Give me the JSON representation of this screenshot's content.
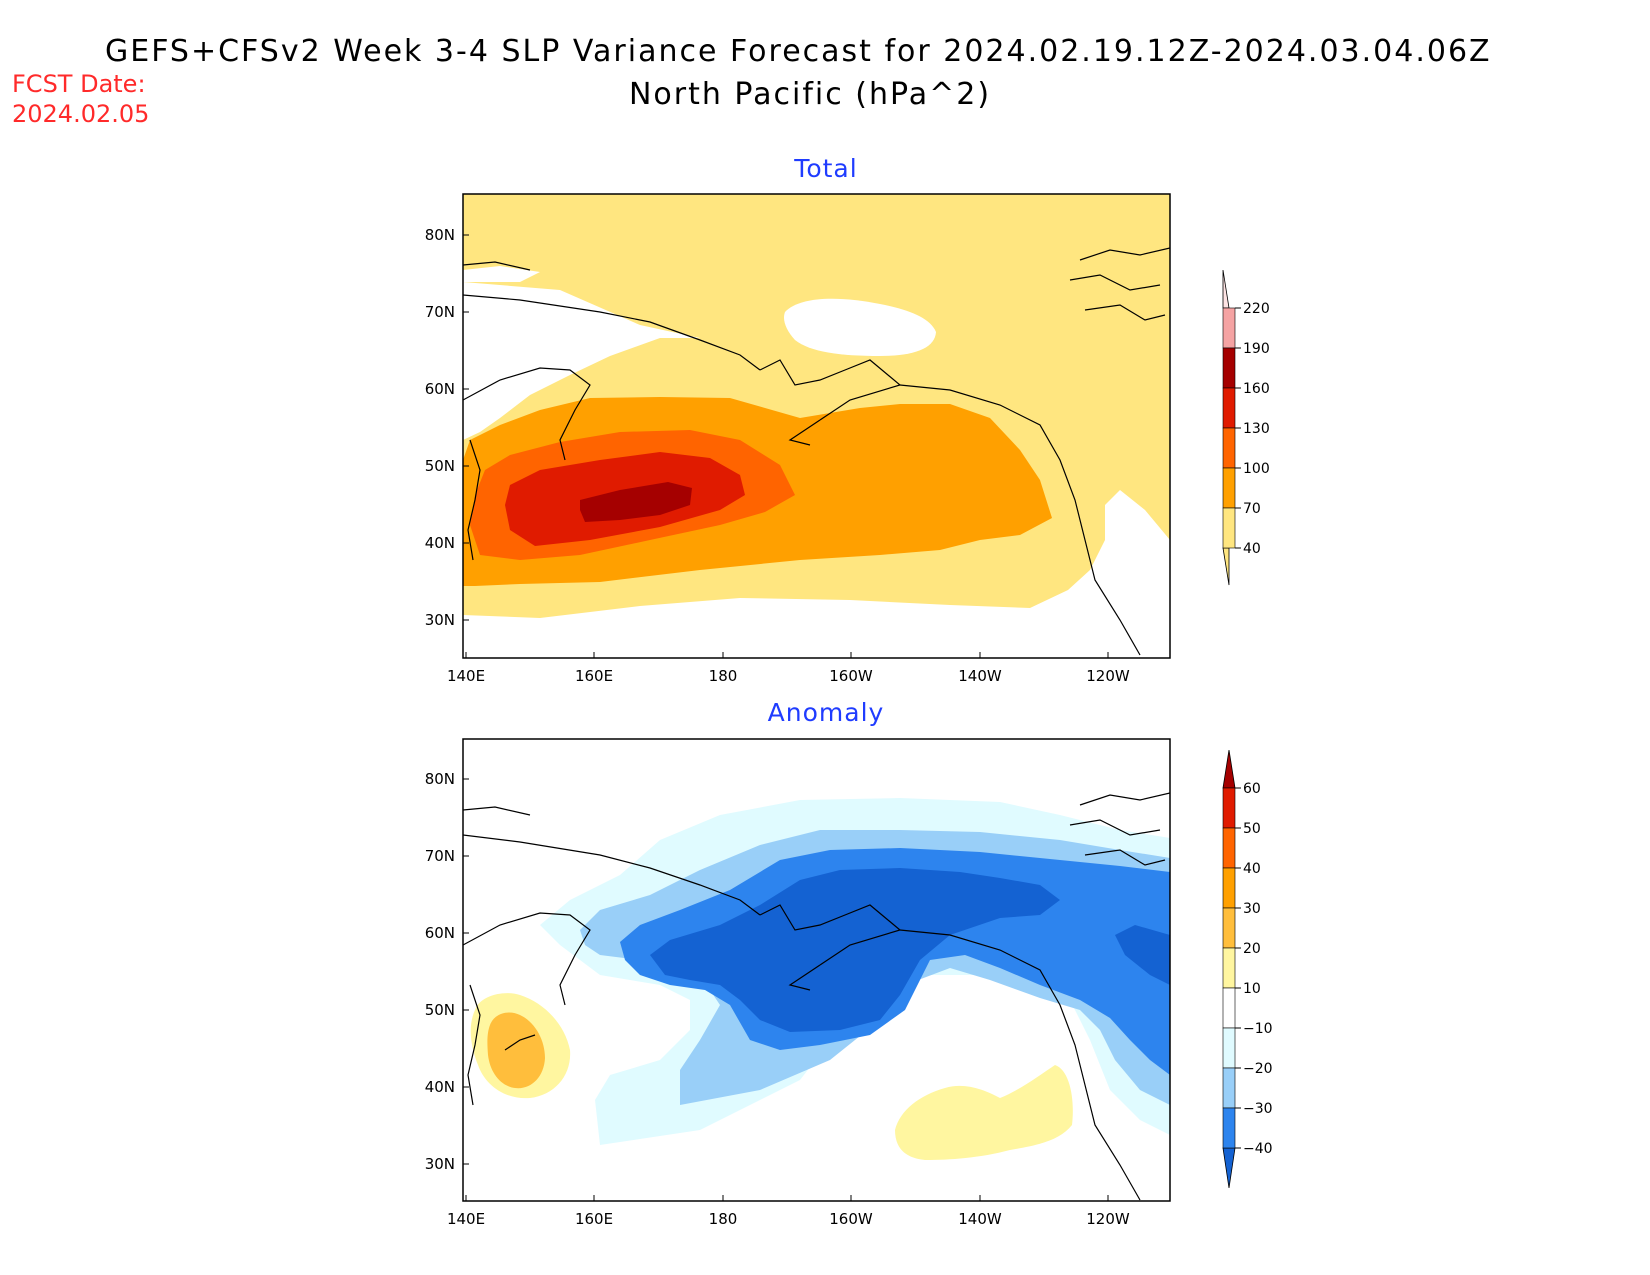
{
  "header": {
    "title": "GEFS+CFSv2 Week 3-4 SLP Variance Forecast for 2024.02.19.12Z-2024.03.04.06Z",
    "subtitle": "North Pacific (hPa^2)",
    "fcst_label": "FCST Date:",
    "fcst_date": "2024.02.05"
  },
  "axes": {
    "lat_labels": [
      "80N",
      "70N",
      "60N",
      "50N",
      "40N",
      "30N"
    ],
    "lon_labels": [
      "140E",
      "160E",
      "180",
      "160W",
      "140W",
      "120W"
    ]
  },
  "panels": [
    {
      "id": "total",
      "title": "Total",
      "colorbar": {
        "levels": [
          "220",
          "190",
          "160",
          "130",
          "100",
          "70",
          "40"
        ],
        "colors": [
          "#fde3e3",
          "#f5a3a3",
          "#a50000",
          "#e01b00",
          "#ff6400",
          "#ffa000",
          "#ffe680"
        ]
      }
    },
    {
      "id": "anomaly",
      "title": "Anomaly",
      "colorbar": {
        "levels": [
          "60",
          "50",
          "40",
          "30",
          "20",
          "10",
          "−10",
          "−20",
          "−30",
          "−40"
        ],
        "colors": [
          "#a50000",
          "#e01b00",
          "#ff6400",
          "#ffa000",
          "#ffbe3c",
          "#fff6a0",
          "#ffffff",
          "#e0fbff",
          "#99cff8",
          "#2d84ee",
          "#1462d2"
        ]
      }
    }
  ]
}
